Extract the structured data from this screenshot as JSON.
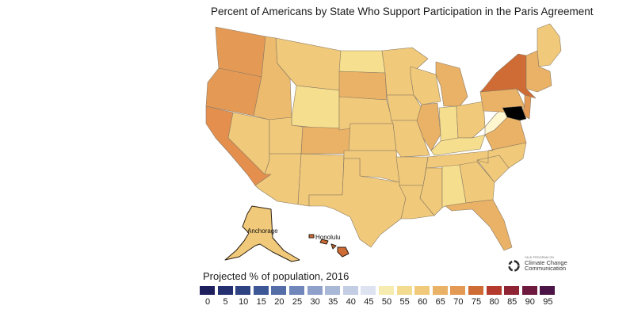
{
  "title": "Percent of Americans by State Who Support Participation in the Paris Agreement",
  "city_labels": {
    "anchorage": "Anchorage",
    "honolulu": "Honolulu"
  },
  "legend": {
    "title": "Projected % of population, 2016",
    "bins": [
      {
        "label": "0",
        "color": "#1c1f5c"
      },
      {
        "label": "5",
        "color": "#24306f"
      },
      {
        "label": "10",
        "color": "#2f4383"
      },
      {
        "label": "15",
        "color": "#3e5796"
      },
      {
        "label": "20",
        "color": "#566ea8"
      },
      {
        "label": "25",
        "color": "#7187bb"
      },
      {
        "label": "30",
        "color": "#8fa1cb"
      },
      {
        "label": "35",
        "color": "#aab8d8"
      },
      {
        "label": "40",
        "color": "#c3cde4"
      },
      {
        "label": "45",
        "color": "#dde3f0"
      },
      {
        "label": "50",
        "color": "#f7ecb0"
      },
      {
        "label": "55",
        "color": "#f3dc8f"
      },
      {
        "label": "60",
        "color": "#f0c97a"
      },
      {
        "label": "65",
        "color": "#eab266"
      },
      {
        "label": "70",
        "color": "#e49a55"
      },
      {
        "label": "75",
        "color": "#cf6b34"
      },
      {
        "label": "80",
        "color": "#b33a2c"
      },
      {
        "label": "85",
        "color": "#8f2434"
      },
      {
        "label": "90",
        "color": "#6e1a3f"
      },
      {
        "label": "95",
        "color": "#4a1447"
      }
    ]
  },
  "logo": {
    "line1": "YALE PROGRAM ON",
    "line2": "Climate Change",
    "line3": "Communication"
  },
  "state_colors": {
    "WA": "#e49a55",
    "OR": "#e49a55",
    "CA": "#e48f4e",
    "NV": "#f0c97a",
    "ID": "#ecbb6e",
    "MT": "#f0c97a",
    "WY": "#f5de8e",
    "UT": "#f0c97a",
    "AZ": "#f0c97a",
    "CO": "#eab266",
    "NM": "#f0c97a",
    "ND": "#f6e08f",
    "SD": "#eab266",
    "NE": "#f0c97a",
    "KS": "#f0c97a",
    "OK": "#f0c97a",
    "TX": "#f0c97a",
    "MN": "#f0c97a",
    "IA": "#f0c97a",
    "MO": "#f0c97a",
    "AR": "#f0c97a",
    "LA": "#f0c97a",
    "WI": "#f0c97a",
    "IL": "#eab266",
    "MI": "#eab266",
    "IN": "#f5de8e",
    "OH": "#f0c97a",
    "KY": "#f5de8e",
    "TN": "#f0c97a",
    "MS": "#f0c97a",
    "AL": "#f5de8e",
    "GA": "#f0c97a",
    "FL": "#eab266",
    "SC": "#f0c97a",
    "NC": "#f0c97a",
    "VA": "#eab266",
    "WV": "#fdf6cf",
    "PA": "#eab266",
    "NY": "#cf6b34",
    "NJ": "#e49a55",
    "ME": "#f0c97a",
    "NE_REGION": "#eab266",
    "AK": "#f0c97a",
    "HI": "#cf6b34"
  }
}
